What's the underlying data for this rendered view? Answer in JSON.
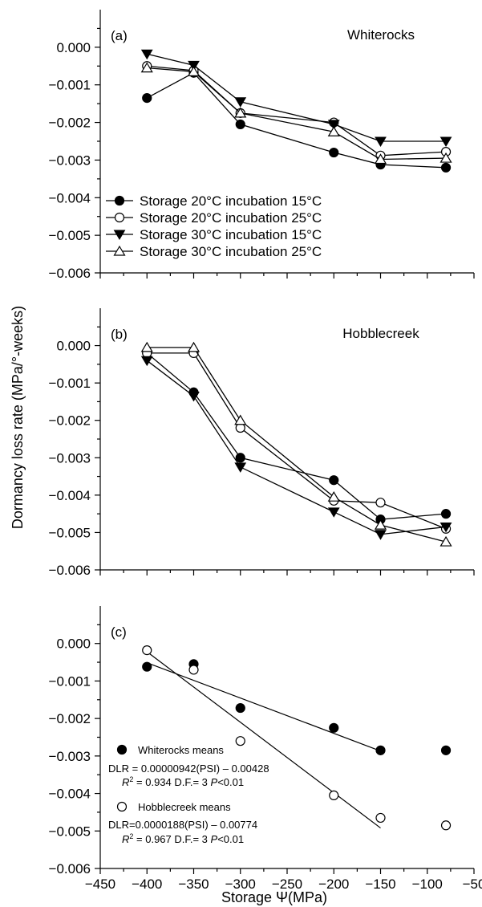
{
  "figure": {
    "y_axis_label": "Dormancy loss rate (MPa/°-weeks)",
    "x_axis_label": "Storage  Ψ(MPa)"
  },
  "chart_data": [
    {
      "type": "line",
      "panel_label": "(a)",
      "site": "Whiterocks",
      "x": [
        -400,
        -350,
        -300,
        -200,
        -150,
        -80
      ],
      "xlim": [
        -450,
        -50
      ],
      "ylim": [
        -0.006,
        0.001
      ],
      "yticks": [
        "0.000",
        "−0.001",
        "−0.002",
        "−0.003",
        "−0.004",
        "−0.005",
        "−0.006"
      ],
      "show_xticklabels": false,
      "legend_position": "bottom-left",
      "series": [
        {
          "name": "Storage 20°C incubation 15°C",
          "marker": "filled-circle",
          "values": [
            -0.00135,
            -0.00068,
            -0.00205,
            -0.0028,
            -0.00312,
            -0.0032
          ]
        },
        {
          "name": "Storage 20°C incubation 25°C",
          "marker": "open-circle",
          "values": [
            -0.0005,
            -0.00062,
            -0.00175,
            -0.002,
            -0.00288,
            -0.00278
          ]
        },
        {
          "name": "Storage 30°C incubation 15°C",
          "marker": "filled-triangle",
          "values": [
            -0.00018,
            -0.00048,
            -0.00145,
            -0.00205,
            -0.0025,
            -0.0025
          ]
        },
        {
          "name": "Storage 30°C incubation 25°C",
          "marker": "open-triangle",
          "values": [
            -0.00055,
            -0.00065,
            -0.00175,
            -0.00225,
            -0.00298,
            -0.00295
          ]
        }
      ]
    },
    {
      "type": "line",
      "panel_label": "(b)",
      "site": "Hobblecreek",
      "x": [
        -400,
        -350,
        -300,
        -200,
        -150,
        -80
      ],
      "xlim": [
        -450,
        -50
      ],
      "ylim": [
        -0.006,
        0.001
      ],
      "yticks": [
        "0.000",
        "−0.001",
        "−0.002",
        "−0.003",
        "−0.004",
        "−0.005",
        "−0.006"
      ],
      "show_xticklabels": false,
      "series": [
        {
          "name": "Storage 20°C incubation 15°C",
          "marker": "filled-circle",
          "values": [
            -0.0002,
            -0.00125,
            -0.003,
            -0.0036,
            -0.00465,
            -0.0045
          ]
        },
        {
          "name": "Storage 20°C incubation 25°C",
          "marker": "open-circle",
          "values": [
            -0.0002,
            -0.0002,
            -0.0022,
            -0.00415,
            -0.0042,
            -0.0049
          ]
        },
        {
          "name": "Storage 30°C incubation 15°C",
          "marker": "filled-triangle",
          "values": [
            -0.0004,
            -0.00135,
            -0.00325,
            -0.00445,
            -0.00505,
            -0.00485
          ]
        },
        {
          "name": "Storage 30°C incubation 25°C",
          "marker": "open-triangle",
          "values": [
            -5e-05,
            -5e-05,
            -0.002,
            -0.00405,
            -0.0048,
            -0.00525
          ]
        }
      ]
    },
    {
      "type": "scatter",
      "panel_label": "(c)",
      "x": [
        -400,
        -350,
        -300,
        -200,
        -150,
        -80
      ],
      "xlim": [
        -450,
        -50
      ],
      "xticks": [
        "−450",
        "−400",
        "−350",
        "−300",
        "−250",
        "−200",
        "−150",
        "−100",
        "−50"
      ],
      "ylim": [
        -0.006,
        0.001
      ],
      "yticks": [
        "0.000",
        "−0.001",
        "−0.002",
        "−0.003",
        "−0.004",
        "−0.005",
        "−0.006"
      ],
      "show_xticklabels": true,
      "series": [
        {
          "name": "Whiterocks means",
          "marker": "filled-circle",
          "values": [
            -0.00062,
            -0.00055,
            -0.00172,
            -0.00225,
            -0.00285,
            -0.00285
          ]
        },
        {
          "name": "Hobblecreek means",
          "marker": "open-circle",
          "values": [
            -0.00018,
            -0.0007,
            -0.0026,
            -0.00405,
            -0.00465,
            -0.00485
          ]
        }
      ],
      "fits": [
        {
          "series": "Whiterocks means",
          "slope": 9.42e-06,
          "intercept": -0.00428,
          "x_range": [
            -400,
            -150
          ]
        },
        {
          "series": "Hobblecreek means",
          "slope": 1.88e-05,
          "intercept": -0.00774,
          "x_range": [
            -400,
            -150
          ]
        }
      ],
      "annotations": {
        "whiterocks_label": "Whiterocks means",
        "whiterocks_eq": "DLR = 0.00000942(PSI) – 0.00428",
        "whiterocks_r2": "R",
        "whiterocks_r2_rest": " = 0.934 D.F.= 3 ",
        "whiterocks_p": "P",
        "whiterocks_p_rest": "<0.01",
        "hobble_label": "Hobblecreek means",
        "hobble_eq": "DLR=0.0000188(PSI)  – 0.00774",
        "hobble_r2": "R",
        "hobble_r2_rest": " = 0.967 D.F.= 3 ",
        "hobble_p": "P",
        "hobble_p_rest": "<0.01",
        "superscript_2": "2"
      }
    }
  ]
}
